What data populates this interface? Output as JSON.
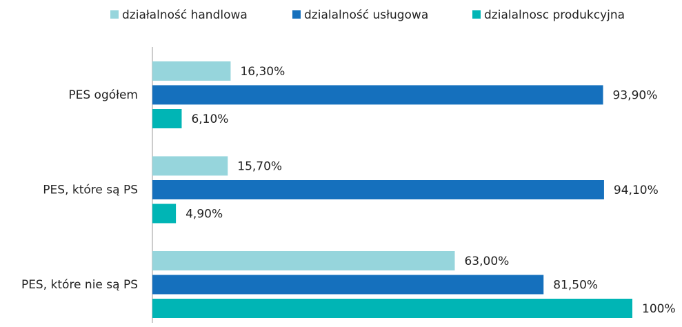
{
  "chart_data": {
    "type": "hbar",
    "categories": [
      "PES ogółem",
      "PES, które są PS",
      "PES, które nie są PS"
    ],
    "series": [
      {
        "name": "działalność handlowa",
        "color": "#96d5dc",
        "values": [
          16.3,
          15.7,
          63.0
        ],
        "value_labels": [
          "16,30%",
          "15,70%",
          "63,00%"
        ]
      },
      {
        "name": "dzialalność usługowa",
        "color": "#1570bd",
        "values": [
          93.9,
          94.1,
          81.5
        ],
        "value_labels": [
          "93,90%",
          "94,10%",
          "81,50%"
        ]
      },
      {
        "name": "dzialalnosc produkcyjna",
        "color": "#00b5b5",
        "values": [
          6.1,
          4.9,
          100
        ],
        "value_labels": [
          "6,10%",
          "4,90%",
          "100%"
        ]
      }
    ],
    "xlim": [
      0,
      100
    ]
  }
}
